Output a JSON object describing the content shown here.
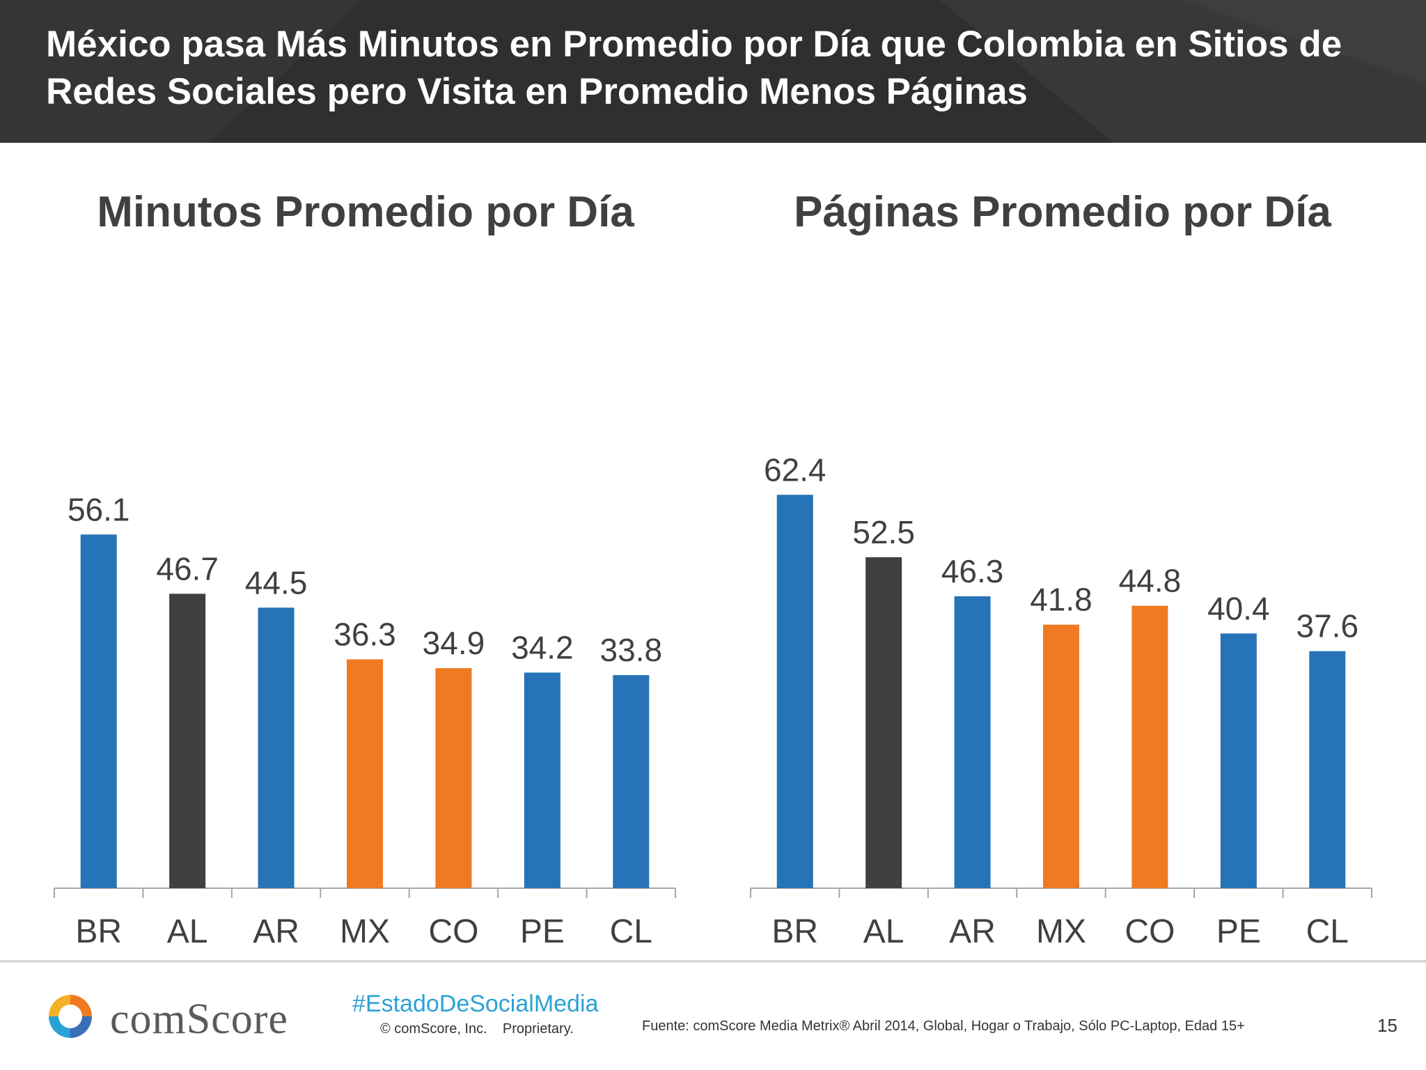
{
  "header": {
    "title": "México pasa Más Minutos en Promedio por Día que Colombia en Sitios de Redes Sociales pero Visita en Promedio Menos Páginas"
  },
  "chart_data": [
    {
      "type": "bar",
      "title": "Minutos Promedio por Día",
      "categories": [
        "BR",
        "AL",
        "AR",
        "MX",
        "CO",
        "PE",
        "CL"
      ],
      "values": [
        56.1,
        46.7,
        44.5,
        36.3,
        34.9,
        34.2,
        33.8
      ],
      "value_labels": [
        "56.1",
        "46.7",
        "44.5",
        "36.3",
        "34.9",
        "34.2",
        "33.8"
      ],
      "bar_colors": [
        "#2673b8",
        "#404040",
        "#2673b8",
        "#f07a22",
        "#f07a22",
        "#2673b8",
        "#2673b8"
      ],
      "ylim": [
        0,
        70
      ],
      "grid": false,
      "legend": "none"
    },
    {
      "type": "bar",
      "title": "Páginas Promedio por Día",
      "categories": [
        "BR",
        "AL",
        "AR",
        "MX",
        "CO",
        "PE",
        "CL"
      ],
      "values": [
        62.4,
        52.5,
        46.3,
        41.8,
        44.8,
        40.4,
        37.6
      ],
      "value_labels": [
        "62.4",
        "52.5",
        "46.3",
        "41.8",
        "44.8",
        "40.4",
        "37.6"
      ],
      "bar_colors": [
        "#2673b8",
        "#404040",
        "#2673b8",
        "#f07a22",
        "#f07a22",
        "#2673b8",
        "#2673b8"
      ],
      "ylim": [
        0,
        70
      ],
      "grid": false,
      "legend": "none"
    }
  ],
  "footer": {
    "logo_text": "comScore",
    "hashtag": "#EstadoDeSocialMedia",
    "copyright": "© comScore, Inc.    Proprietary.",
    "source": "Fuente: comScore Media Metrix® Abril 2014, Global, Hogar o Trabajo, Sólo PC-Laptop, Edad 15+",
    "page_number": "15"
  },
  "colors": {
    "header_bg": "#2f2f2f",
    "blue": "#2673b8",
    "gray": "#404040",
    "orange": "#f07a22",
    "hashtag": "#2aa2d6"
  }
}
